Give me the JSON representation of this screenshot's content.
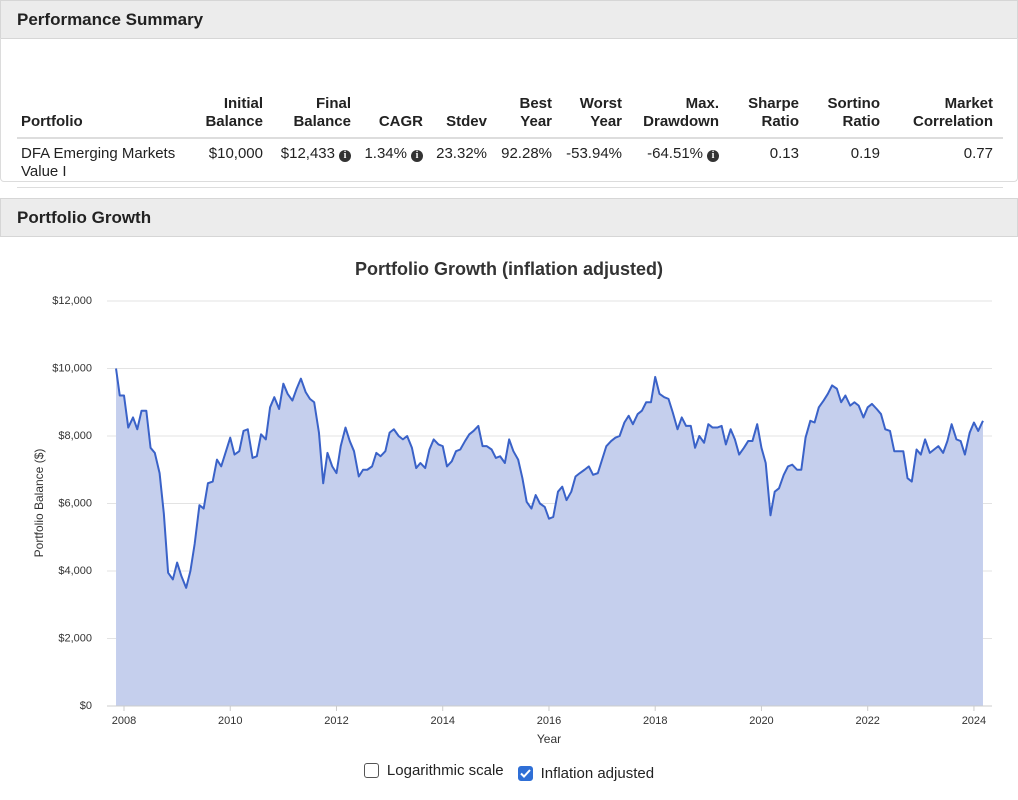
{
  "performance_summary": {
    "title": "Performance Summary",
    "columns": [
      "Portfolio",
      "Initial\nBalance",
      "Final\nBalance",
      "CAGR",
      "Stdev",
      "Best\nYear",
      "Worst\nYear",
      "Max.\nDrawdown",
      "Sharpe\nRatio",
      "Sortino\nRatio",
      "Market\nCorrelation"
    ],
    "rows": [
      [
        "DFA Emerging Markets Value I",
        "$10,000",
        "$12,433",
        "1.34%",
        "23.32%",
        "92.28%",
        "-53.94%",
        "-64.51%",
        "0.13",
        "0.19",
        "0.77"
      ]
    ]
  },
  "portfolio_growth": {
    "title": "Portfolio Growth"
  },
  "chart_data": {
    "type": "area",
    "title": "Portfolio Growth (inflation adjusted)",
    "x_label": "Year",
    "y_label": "Portfolio Balance ($)",
    "xlim": [
      2007.68,
      2024.34
    ],
    "xticks": [
      2008,
      2010,
      2012,
      2014,
      2016,
      2018,
      2020,
      2022,
      2024
    ],
    "ylim": [
      0,
      12000
    ],
    "yticks": [
      {
        "value": 0,
        "label": "$0"
      },
      {
        "value": 2000,
        "label": "$2,000"
      },
      {
        "value": 4000,
        "label": "$4,000"
      },
      {
        "value": 6000,
        "label": "$6,000"
      },
      {
        "value": 8000,
        "label": "$8,000"
      },
      {
        "value": 10000,
        "label": "$10,000"
      },
      {
        "value": 12000,
        "label": "$12,000"
      }
    ],
    "grid": true,
    "log_scale": false,
    "x": [
      2007.85,
      2007.92,
      2008.0,
      2008.08,
      2008.17,
      2008.25,
      2008.33,
      2008.42,
      2008.5,
      2008.58,
      2008.67,
      2008.75,
      2008.83,
      2008.92,
      2009.0,
      2009.08,
      2009.17,
      2009.25,
      2009.33,
      2009.42,
      2009.5,
      2009.58,
      2009.67,
      2009.75,
      2009.83,
      2009.92,
      2010.0,
      2010.08,
      2010.17,
      2010.25,
      2010.33,
      2010.42,
      2010.5,
      2010.58,
      2010.67,
      2010.75,
      2010.83,
      2010.92,
      2011.0,
      2011.08,
      2011.17,
      2011.25,
      2011.33,
      2011.42,
      2011.5,
      2011.58,
      2011.67,
      2011.75,
      2011.83,
      2011.92,
      2012.0,
      2012.08,
      2012.17,
      2012.25,
      2012.33,
      2012.42,
      2012.5,
      2012.58,
      2012.67,
      2012.75,
      2012.83,
      2012.92,
      2013.0,
      2013.08,
      2013.17,
      2013.25,
      2013.33,
      2013.42,
      2013.5,
      2013.58,
      2013.67,
      2013.75,
      2013.83,
      2013.92,
      2014.0,
      2014.08,
      2014.17,
      2014.25,
      2014.33,
      2014.42,
      2014.5,
      2014.58,
      2014.67,
      2014.75,
      2014.83,
      2014.92,
      2015.0,
      2015.08,
      2015.17,
      2015.25,
      2015.33,
      2015.42,
      2015.5,
      2015.58,
      2015.67,
      2015.75,
      2015.83,
      2015.92,
      2016.0,
      2016.08,
      2016.17,
      2016.25,
      2016.33,
      2016.42,
      2016.5,
      2016.58,
      2016.67,
      2016.75,
      2016.83,
      2016.92,
      2017.0,
      2017.08,
      2017.17,
      2017.25,
      2017.33,
      2017.42,
      2017.5,
      2017.58,
      2017.67,
      2017.75,
      2017.83,
      2017.92,
      2018.0,
      2018.08,
      2018.17,
      2018.25,
      2018.33,
      2018.42,
      2018.5,
      2018.58,
      2018.67,
      2018.75,
      2018.83,
      2018.92,
      2019.0,
      2019.08,
      2019.17,
      2019.25,
      2019.33,
      2019.42,
      2019.5,
      2019.58,
      2019.67,
      2019.75,
      2019.83,
      2019.92,
      2020.0,
      2020.08,
      2020.17,
      2020.25,
      2020.33,
      2020.42,
      2020.5,
      2020.58,
      2020.67,
      2020.75,
      2020.83,
      2020.92,
      2021.0,
      2021.08,
      2021.17,
      2021.25,
      2021.33,
      2021.42,
      2021.5,
      2021.58,
      2021.67,
      2021.75,
      2021.83,
      2021.92,
      2022.0,
      2022.08,
      2022.17,
      2022.25,
      2022.33,
      2022.42,
      2022.5,
      2022.58,
      2022.67,
      2022.75,
      2022.83,
      2022.92,
      2023.0,
      2023.08,
      2023.17,
      2023.25,
      2023.33,
      2023.42,
      2023.5,
      2023.58,
      2023.67,
      2023.75,
      2023.83,
      2023.92,
      2024.0,
      2024.08,
      2024.17
    ],
    "series": [
      {
        "color": "#3a62c8",
        "fill": "#c5cfed",
        "values": [
          10000,
          9200,
          9200,
          8250,
          8550,
          8200,
          8750,
          8750,
          7650,
          7500,
          6900,
          5700,
          3950,
          3750,
          4250,
          3850,
          3500,
          4000,
          4800,
          5950,
          5850,
          6600,
          6650,
          7300,
          7100,
          7550,
          7950,
          7450,
          7550,
          8150,
          8200,
          7350,
          7400,
          8050,
          7900,
          8850,
          9150,
          8800,
          9550,
          9250,
          9050,
          9400,
          9700,
          9300,
          9100,
          9000,
          8100,
          6600,
          7500,
          7100,
          6900,
          7700,
          8250,
          7850,
          7550,
          6800,
          7000,
          7000,
          7100,
          7500,
          7400,
          7550,
          8100,
          8200,
          8000,
          7900,
          8000,
          7650,
          7050,
          7200,
          7050,
          7600,
          7900,
          7750,
          7700,
          7100,
          7250,
          7550,
          7600,
          7850,
          8050,
          8150,
          8300,
          7700,
          7700,
          7600,
          7350,
          7400,
          7200,
          7900,
          7550,
          7300,
          6750,
          6050,
          5850,
          6250,
          6000,
          5900,
          5550,
          5600,
          6350,
          6500,
          6100,
          6350,
          6800,
          6900,
          7000,
          7100,
          6850,
          6900,
          7300,
          7700,
          7850,
          7950,
          8000,
          8400,
          8600,
          8350,
          8650,
          8750,
          9000,
          9000,
          9750,
          9250,
          9150,
          9100,
          8700,
          8200,
          8550,
          8300,
          8300,
          7650,
          8000,
          7800,
          8350,
          8250,
          8250,
          8300,
          7750,
          8200,
          7900,
          7450,
          7650,
          7850,
          7850,
          8350,
          7650,
          7200,
          5650,
          6350,
          6450,
          6850,
          7100,
          7150,
          7000,
          7000,
          7950,
          8450,
          8400,
          8850,
          9050,
          9250,
          9500,
          9400,
          9000,
          9200,
          8900,
          9000,
          8900,
          8550,
          8850,
          8950,
          8800,
          8650,
          8200,
          8150,
          7550,
          7550,
          7550,
          6750,
          6650,
          7600,
          7450,
          7900,
          7500,
          7600,
          7700,
          7500,
          7850,
          8350,
          7900,
          7850,
          7450,
          8100,
          8400,
          8150,
          8450
        ]
      }
    ]
  },
  "controls": [
    {
      "label": "Logarithmic scale",
      "checked": false
    },
    {
      "label": "Inflation adjusted",
      "checked": true
    }
  ]
}
